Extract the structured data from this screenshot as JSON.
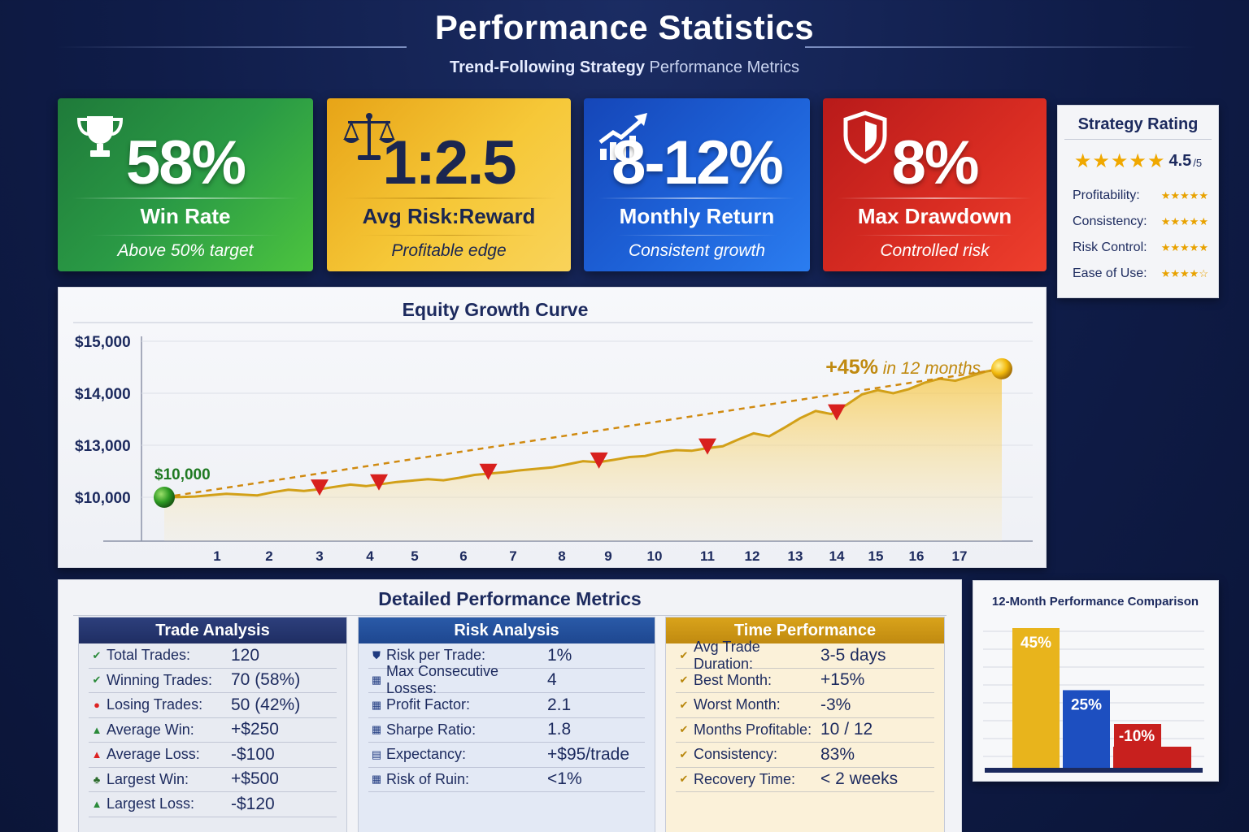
{
  "header": {
    "title": "Performance Statistics",
    "subtitle_bold": "Trend-Following Strategy",
    "subtitle_rest": " Performance Metrics"
  },
  "cards": [
    {
      "value": "58%",
      "label": "Win Rate",
      "sub": "Above 50% target",
      "icon": "trophy-icon",
      "color": "#2a9a45"
    },
    {
      "value": "1:2.5",
      "label": "Avg Risk:Reward",
      "sub": "Profitable edge",
      "icon": "scales-icon",
      "color": "#f6c838"
    },
    {
      "value": "8-12%",
      "label": "Monthly Return",
      "sub": "Consistent growth",
      "icon": "growth-chart-icon",
      "color": "#1d60d6"
    },
    {
      "value": "8%",
      "label": "Max Drawdown",
      "sub": "Controlled risk",
      "icon": "shield-icon",
      "color": "#d82c22"
    }
  ],
  "rating": {
    "title": "Strategy Rating",
    "overall_stars": "★★★★★",
    "score": "4.5",
    "out_of": "/5",
    "items": [
      {
        "label": "Profitability:",
        "stars": "★★★★★"
      },
      {
        "label": "Consistency:",
        "stars": "★★★★★"
      },
      {
        "label": "Risk Control:",
        "stars": "★★★★★"
      },
      {
        "label": "Ease of Use:",
        "stars": "★★★★☆"
      }
    ]
  },
  "chart_data": [
    {
      "type": "line",
      "title": "Equity Growth Curve",
      "xlabel": "",
      "ylabel": "",
      "y_tick_labels": [
        "$10,000",
        "$13,000",
        "$14,000",
        "$15,000"
      ],
      "x_tick_labels": [
        "1",
        "2",
        "3",
        "4",
        "5",
        "6",
        "7",
        "8",
        "9",
        "10",
        "11",
        "12",
        "13",
        "14",
        "15",
        "16",
        "17"
      ],
      "start_label": "$10,000",
      "end_annotation_big": "+45%",
      "end_annotation_rest": " in 12 months",
      "series": [
        {
          "values": [
            10000,
            10010,
            10040,
            10120,
            10200,
            10150,
            10110,
            10290,
            10430,
            10360,
            10460,
            10600,
            10730,
            10640,
            10760,
            10880,
            10960,
            11040,
            10980,
            11120,
            11290,
            11370,
            11450,
            11560,
            11640,
            11720,
            11900,
            12080,
            12020,
            12160,
            12320,
            12380,
            12590,
            12720,
            12680,
            12830,
            12940,
            13110,
            13230,
            13170,
            13340,
            13520,
            13660,
            13600,
            13780,
            13980,
            14060,
            14000,
            14080,
            14200,
            14280,
            14240,
            14330,
            14420,
            14470
          ]
        }
      ],
      "trend_values": [
        10000,
        14470
      ],
      "dip_markers_at": [
        3,
        4.2,
        6.5,
        8.8,
        11,
        14
      ]
    },
    {
      "type": "bar",
      "title": "12-Month Performance Comparison",
      "categories": [
        "",
        "",
        ""
      ],
      "values": [
        45,
        25,
        -10
      ],
      "value_labels": [
        "45%",
        "25%",
        "-10%"
      ],
      "colors": [
        "#e8b41c",
        "#1d4fc0",
        "#c8201e"
      ]
    }
  ],
  "metrics": {
    "title": "Detailed Performance Metrics",
    "columns": [
      {
        "header": "Trade Analysis",
        "rows": [
          {
            "icon": "check-icon",
            "glyph": "✔",
            "glyph_color": "#2a8a3a",
            "k": "Total Trades:",
            "v": "120"
          },
          {
            "icon": "check-icon",
            "glyph": "✔",
            "glyph_color": "#2a8a3a",
            "k": "Winning Trades:",
            "v": "70 (58%)"
          },
          {
            "icon": "pin-icon",
            "glyph": "●",
            "glyph_color": "#d22",
            "k": "Losing Trades:",
            "v": "50 (42%)"
          },
          {
            "icon": "up-arrow-icon",
            "glyph": "▲",
            "glyph_color": "#2a8a3a",
            "k": "Average Win:",
            "v": "+$250"
          },
          {
            "icon": "up-arrow-icon",
            "glyph": "▲",
            "glyph_color": "#d22",
            "k": "Average Loss:",
            "v": "-$100"
          },
          {
            "icon": "tree-icon",
            "glyph": "♣",
            "glyph_color": "#2a6a2a",
            "k": "Largest Win:",
            "v": "+$500"
          },
          {
            "icon": "up-arrow-icon",
            "glyph": "▲",
            "glyph_color": "#2a8a3a",
            "k": "Largest Loss:",
            "v": "-$120"
          }
        ]
      },
      {
        "header": "Risk Analysis",
        "rows": [
          {
            "icon": "shield-icon",
            "glyph": "⛊",
            "glyph_color": "#1f3a80",
            "k": "Risk per Trade:",
            "v": "1%"
          },
          {
            "icon": "grid-icon",
            "glyph": "▦",
            "glyph_color": "#1f3a80",
            "k": "Max Consecutive Losses:",
            "v": "4"
          },
          {
            "icon": "grid-icon",
            "glyph": "▦",
            "glyph_color": "#1f3a80",
            "k": "Profit Factor:",
            "v": "2.1"
          },
          {
            "icon": "grid-icon",
            "glyph": "▦",
            "glyph_color": "#1f3a80",
            "k": "Sharpe Ratio:",
            "v": "1.8"
          },
          {
            "icon": "grid-icon",
            "glyph": "▤",
            "glyph_color": "#1f3a80",
            "k": "Expectancy:",
            "v": "+$95/trade"
          },
          {
            "icon": "grid-icon",
            "glyph": "▦",
            "glyph_color": "#1f3a80",
            "k": "Risk of Ruin:",
            "v": "<1%"
          }
        ]
      },
      {
        "header": "Time Performance",
        "rows": [
          {
            "icon": "check-icon",
            "glyph": "✔",
            "glyph_color": "#b8860b",
            "k": "Avg Trade Duration:",
            "v": "3-5 days"
          },
          {
            "icon": "check-icon",
            "glyph": "✔",
            "glyph_color": "#b8860b",
            "k": "Best Month:",
            "v": "+15%"
          },
          {
            "icon": "check-icon",
            "glyph": "✔",
            "glyph_color": "#b8860b",
            "k": "Worst Month:",
            "v": "-3%"
          },
          {
            "icon": "check-icon",
            "glyph": "✔",
            "glyph_color": "#b8860b",
            "k": "Months Profitable:",
            "v": "10 / 12"
          },
          {
            "icon": "check-icon",
            "glyph": "✔",
            "glyph_color": "#b8860b",
            "k": "Consistency:",
            "v": "83%"
          },
          {
            "icon": "check-icon",
            "glyph": "✔",
            "glyph_color": "#b8860b",
            "k": "Recovery Time:",
            "v": "< 2 weeks"
          }
        ]
      }
    ]
  }
}
